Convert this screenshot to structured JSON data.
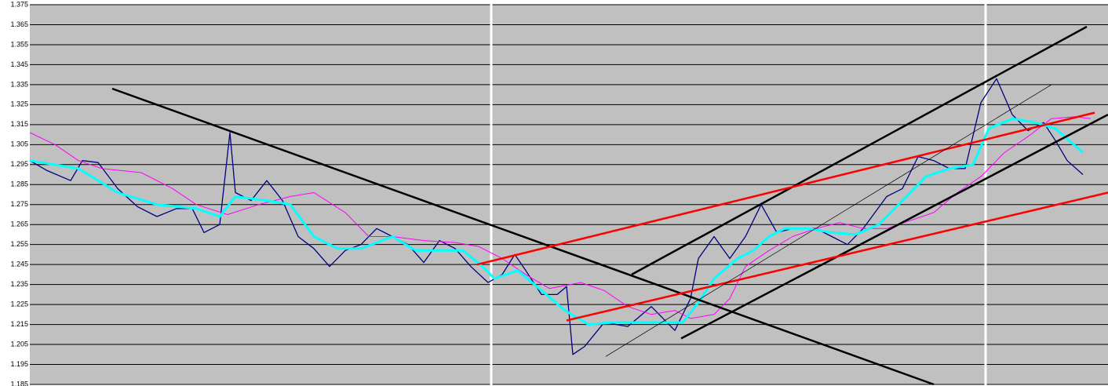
{
  "chart_data": {
    "type": "line",
    "ylim": [
      1.185,
      1.375
    ],
    "yticks": [
      1.185,
      1.195,
      1.205,
      1.215,
      1.225,
      1.235,
      1.245,
      1.255,
      1.265,
      1.275,
      1.285,
      1.295,
      1.305,
      1.315,
      1.325,
      1.335,
      1.345,
      1.355,
      1.365,
      1.375
    ],
    "xlim": [
      0,
      1374
    ],
    "grid": true,
    "background": "#c0c0c0",
    "series": [
      {
        "color": "#000080",
        "width": 1.3,
        "x": [
          0,
          22,
          52,
          67,
          87,
          112,
          137,
          162,
          187,
          207,
          222,
          242,
          255,
          262,
          282,
          302,
          322,
          342,
          362,
          382,
          402,
          422,
          442,
          462,
          482,
          502,
          522,
          542,
          562,
          584,
          602,
          618,
          632,
          652,
          672,
          684,
          692,
          707,
          732,
          762,
          792,
          822,
          842,
          852,
          872,
          892,
          912,
          932,
          952,
          972,
          1002,
          1022,
          1042,
          1062,
          1092,
          1112,
          1132,
          1152,
          1172,
          1192,
          1212,
          1232,
          1252,
          1272,
          1292,
          1307,
          1322,
          1342
        ],
        "values": [
          1.297,
          1.292,
          1.287,
          1.297,
          1.296,
          1.283,
          1.274,
          1.269,
          1.273,
          1.273,
          1.261,
          1.265,
          1.311,
          1.281,
          1.277,
          1.287,
          1.277,
          1.259,
          1.253,
          1.244,
          1.252,
          1.255,
          1.263,
          1.259,
          1.255,
          1.246,
          1.257,
          1.253,
          1.244,
          1.236,
          1.24,
          1.25,
          1.242,
          1.23,
          1.23,
          1.234,
          1.2,
          1.204,
          1.216,
          1.214,
          1.224,
          1.212,
          1.228,
          1.248,
          1.259,
          1.248,
          1.259,
          1.275,
          1.261,
          1.263,
          1.263,
          1.259,
          1.255,
          1.263,
          1.279,
          1.283,
          1.299,
          1.297,
          1.293,
          1.293,
          1.326,
          1.338,
          1.32,
          1.312,
          1.316,
          1.307,
          1.297,
          1.29
        ]
      },
      {
        "color": "#ff00ff",
        "width": 1,
        "x": [
          0,
          32,
          62,
          92,
          142,
          182,
          212,
          252,
          292,
          332,
          362,
          402,
          432,
          462,
          502,
          542,
          572,
          602,
          632,
          662,
          702,
          732,
          762,
          792,
          822,
          842,
          872,
          892,
          912,
          942,
          972,
          1002,
          1032,
          1062,
          1092,
          1122,
          1152,
          1182,
          1212,
          1242,
          1272,
          1302,
          1332,
          1352
        ],
        "values": [
          1.311,
          1.305,
          1.297,
          1.293,
          1.291,
          1.283,
          1.275,
          1.27,
          1.275,
          1.279,
          1.281,
          1.271,
          1.259,
          1.259,
          1.257,
          1.256,
          1.254,
          1.248,
          1.24,
          1.233,
          1.236,
          1.232,
          1.224,
          1.22,
          1.222,
          1.218,
          1.22,
          1.228,
          1.244,
          1.252,
          1.259,
          1.263,
          1.266,
          1.263,
          1.263,
          1.267,
          1.271,
          1.281,
          1.289,
          1.301,
          1.309,
          1.318,
          1.319,
          1.318
        ]
      },
      {
        "color": "#00ffff",
        "width": 3,
        "x": [
          0,
          62,
          112,
          162,
          212,
          242,
          262,
          302,
          332,
          362,
          392,
          422,
          462,
          492,
          522,
          552,
          577,
          592,
          622,
          652,
          682,
          712,
          742,
          772,
          802,
          832,
          852,
          872,
          902,
          922,
          942,
          962,
          992,
          1022,
          1052,
          1082,
          1112,
          1142,
          1172,
          1202,
          1222,
          1252,
          1282,
          1307,
          1342
        ],
        "values": [
          1.297,
          1.293,
          1.281,
          1.275,
          1.273,
          1.269,
          1.279,
          1.277,
          1.275,
          1.259,
          1.253,
          1.253,
          1.259,
          1.252,
          1.252,
          1.252,
          1.244,
          1.238,
          1.242,
          1.232,
          1.222,
          1.215,
          1.216,
          1.216,
          1.216,
          1.216,
          1.226,
          1.238,
          1.248,
          1.252,
          1.259,
          1.263,
          1.263,
          1.261,
          1.26,
          1.265,
          1.277,
          1.289,
          1.293,
          1.295,
          1.313,
          1.318,
          1.316,
          1.313,
          1.301
        ]
      }
    ],
    "lines": [
      {
        "color": "#000000",
        "width": 2.5,
        "x": [
          105,
          1152
        ],
        "values": [
          1.333,
          1.185
        ]
      },
      {
        "color": "#000000",
        "width": 2.5,
        "x": [
          767,
          1347
        ],
        "values": [
          1.24,
          1.364
        ]
      },
      {
        "color": "#000000",
        "width": 2.5,
        "x": [
          830,
          1374
        ],
        "values": [
          1.208,
          1.32
        ]
      },
      {
        "color": "#ff0000",
        "width": 2.5,
        "x": [
          570,
          1357
        ],
        "values": [
          1.245,
          1.321
        ]
      },
      {
        "color": "#ff0000",
        "width": 2.5,
        "x": [
          684,
          1374
        ],
        "values": [
          1.217,
          1.281
        ]
      },
      {
        "color": "#000000",
        "width": 0.7,
        "x": [
          734,
          1302
        ],
        "values": [
          1.199,
          1.335
        ]
      }
    ]
  }
}
